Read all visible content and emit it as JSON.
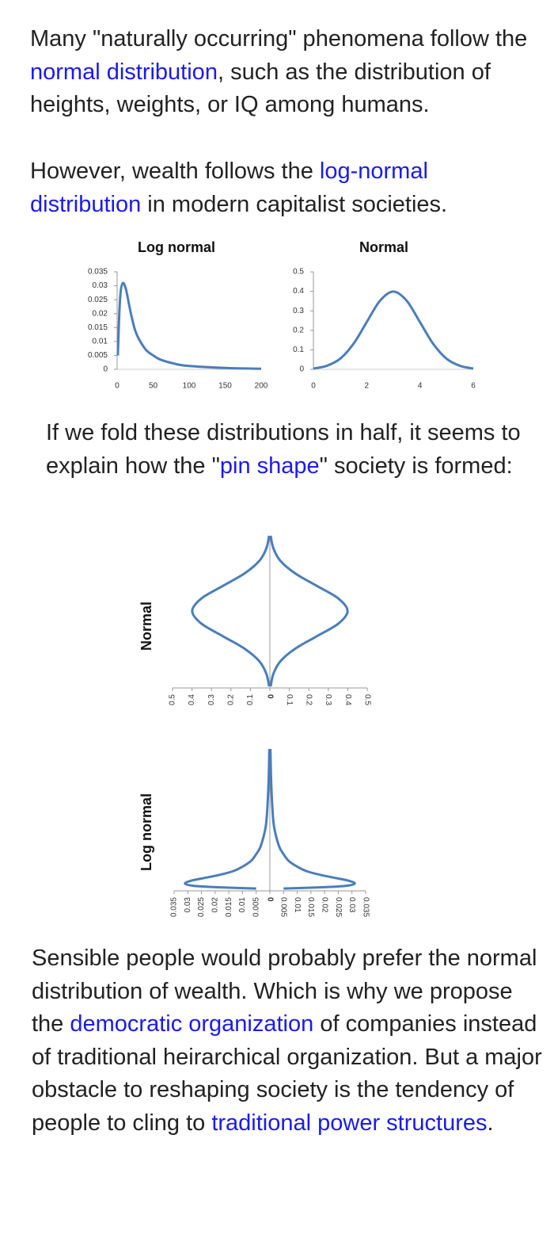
{
  "paragraphs": [
    {
      "segments": [
        {
          "text": "Many \"naturally occurring\" phenomena follow the ",
          "link": false
        },
        {
          "text": "normal distribution",
          "link": true
        },
        {
          "text": ", such as the distribution of heights, weights, or IQ among humans.",
          "link": false
        }
      ]
    },
    {
      "segments": [
        {
          "text": "However, wealth follows the ",
          "link": false
        },
        {
          "text": "log-normal distribution",
          "link": true
        },
        {
          "text": " in modern capitalist societies.",
          "link": false
        }
      ]
    },
    {
      "segments": [
        {
          "text": "If we fold these distributions in half, it seems to explain how the \"",
          "link": false
        },
        {
          "text": "pin shape",
          "link": true
        },
        {
          "text": "\" society is formed:",
          "link": false
        }
      ]
    },
    {
      "segments": [
        {
          "text": "Sensible people would probably prefer the normal distribution of wealth.  Which is why we propose the ",
          "link": false
        },
        {
          "text": "democratic organization",
          "link": true
        },
        {
          "text": " of companies instead of traditional heirarchical organization.  But a major obstacle to reshaping society is the tendency of people to cling to ",
          "link": false
        },
        {
          "text": "traditional power structures",
          "link": true
        },
        {
          "text": ".",
          "link": false
        }
      ]
    }
  ],
  "chart_data": [
    {
      "type": "line",
      "title": "Log normal",
      "color": "#4a7ebb",
      "x": [
        1,
        3,
        5,
        8,
        12,
        16,
        20,
        25,
        30,
        40,
        50,
        60,
        80,
        100,
        150,
        200
      ],
      "y": [
        0.005,
        0.02,
        0.028,
        0.031,
        0.029,
        0.024,
        0.019,
        0.014,
        0.011,
        0.007,
        0.005,
        0.0035,
        0.002,
        0.0012,
        0.0005,
        0.0002
      ],
      "xlim": [
        0,
        200
      ],
      "ylim": [
        0,
        0.035
      ],
      "xticks": [
        0,
        50,
        100,
        150,
        200
      ],
      "yticks": [
        0,
        0.005,
        0.01,
        0.015,
        0.02,
        0.025,
        0.03,
        0.035
      ]
    },
    {
      "type": "line",
      "title": "Normal",
      "color": "#4a7ebb",
      "x": [
        0,
        0.5,
        1,
        1.5,
        2,
        2.5,
        3,
        3.5,
        4,
        4.5,
        5,
        5.5,
        6
      ],
      "y": [
        0.004,
        0.018,
        0.054,
        0.13,
        0.242,
        0.352,
        0.399,
        0.352,
        0.242,
        0.13,
        0.054,
        0.018,
        0.004
      ],
      "xlim": [
        0,
        6
      ],
      "ylim": [
        0,
        0.5
      ],
      "xticks": [
        0,
        2,
        4,
        6
      ],
      "yticks": [
        0,
        0.1,
        0.2,
        0.3,
        0.4,
        0.5
      ]
    },
    {
      "type": "folded",
      "title": "Normal",
      "color": "#4a7ebb",
      "x": [
        0,
        0.5,
        1,
        1.5,
        2,
        2.5,
        3,
        3.5,
        4,
        4.5,
        5,
        5.5,
        6
      ],
      "y": [
        0.004,
        0.018,
        0.054,
        0.13,
        0.242,
        0.352,
        0.399,
        0.352,
        0.242,
        0.13,
        0.054,
        0.018,
        0.004
      ],
      "xlim": [
        0,
        6
      ],
      "ylim": [
        -0.5,
        0.5
      ],
      "yticks": [
        {
          "value": -0.5,
          "label": "0.5"
        },
        {
          "value": -0.4,
          "label": "0.4"
        },
        {
          "value": -0.3,
          "label": "0.3"
        },
        {
          "value": -0.2,
          "label": "0.2"
        },
        {
          "value": -0.1,
          "label": "0.1"
        },
        0,
        0.1,
        0.2,
        0.3,
        0.4,
        0.5
      ]
    },
    {
      "type": "folded",
      "title": "Log normal",
      "color": "#4a7ebb",
      "x": [
        1,
        3,
        5,
        8,
        12,
        16,
        20,
        25,
        30,
        40,
        50,
        60,
        80,
        100,
        150,
        200
      ],
      "y": [
        0.005,
        0.02,
        0.028,
        0.031,
        0.029,
        0.024,
        0.019,
        0.014,
        0.011,
        0.007,
        0.005,
        0.0035,
        0.002,
        0.0012,
        0.0005,
        0.0002
      ],
      "xlim": [
        0,
        200
      ],
      "ylim": [
        -0.035,
        0.035
      ],
      "yticks": [
        {
          "value": -0.035,
          "label": "0.035"
        },
        {
          "value": -0.03,
          "label": "0.03"
        },
        {
          "value": -0.025,
          "label": "0.025"
        },
        {
          "value": -0.02,
          "label": "0.02"
        },
        {
          "value": -0.015,
          "label": "0.015"
        },
        {
          "value": -0.01,
          "label": "0.01"
        },
        {
          "value": -0.005,
          "label": "0.005"
        },
        0,
        0.005,
        0.01,
        0.015,
        0.02,
        0.025,
        0.03,
        0.035
      ]
    }
  ]
}
